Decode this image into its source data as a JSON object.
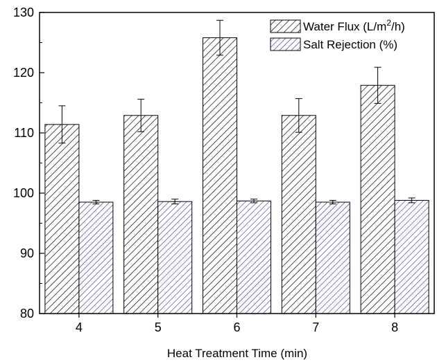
{
  "chart_data": {
    "type": "bar",
    "title": "",
    "xlabel": "Heat Treatment Time (min)",
    "ylabel": "",
    "categories": [
      "4",
      "5",
      "6",
      "7",
      "8"
    ],
    "ylim": [
      80,
      130
    ],
    "yticks": [
      80,
      90,
      100,
      110,
      120,
      130
    ],
    "grid": false,
    "legend_position": "top-right",
    "series": [
      {
        "name": "Water Flux (L/m2/h)",
        "legend_base": "Water Flux (L/m",
        "legend_sup": "2",
        "legend_tail": "/h)",
        "values": [
          111.4,
          112.9,
          125.8,
          112.9,
          117.9
        ],
        "errors": [
          3.1,
          2.7,
          2.9,
          2.8,
          3.0
        ],
        "pattern": "hatch-black",
        "color": "#000000"
      },
      {
        "name": "Salt Rejection (%)",
        "values": [
          98.5,
          98.6,
          98.7,
          98.5,
          98.8
        ],
        "errors": [
          0.3,
          0.4,
          0.3,
          0.3,
          0.4
        ],
        "pattern": "hatch-blue",
        "color": "#2b2b9c"
      }
    ]
  }
}
